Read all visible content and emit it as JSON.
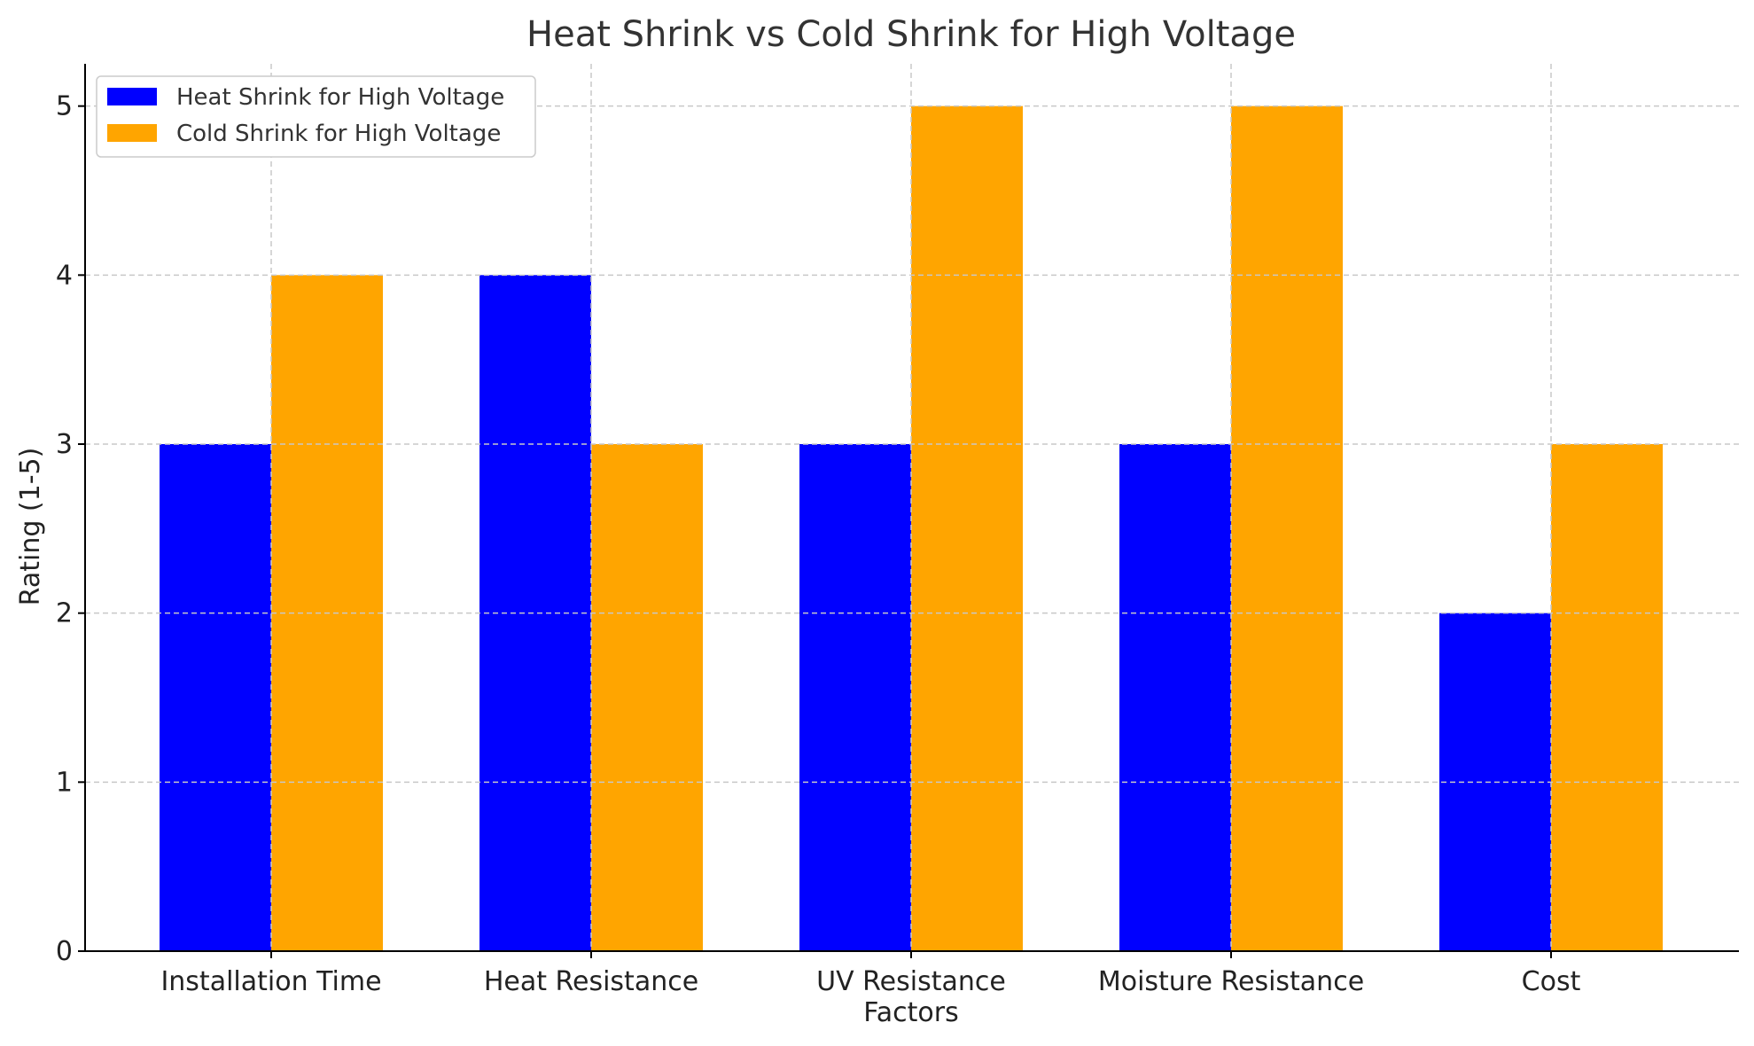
{
  "chart_data": {
    "type": "bar",
    "title": "Heat Shrink vs Cold Shrink for High Voltage",
    "xlabel": "Factors",
    "ylabel": "Rating (1-5)",
    "categories": [
      "Installation Time",
      "Heat Resistance",
      "UV Resistance",
      "Moisture Resistance",
      "Cost"
    ],
    "series": [
      {
        "name": "Heat Shrink for High Voltage",
        "color": "#0000ff",
        "values": [
          3,
          4,
          3,
          3,
          2
        ]
      },
      {
        "name": "Cold Shrink for High Voltage",
        "color": "#ffa500",
        "values": [
          4,
          3,
          5,
          5,
          3
        ]
      }
    ],
    "ylim": [
      0,
      5.25
    ],
    "yticks": [
      "0",
      "1",
      "2",
      "3",
      "4",
      "5"
    ],
    "grid": true,
    "legend_position": "top-left"
  }
}
